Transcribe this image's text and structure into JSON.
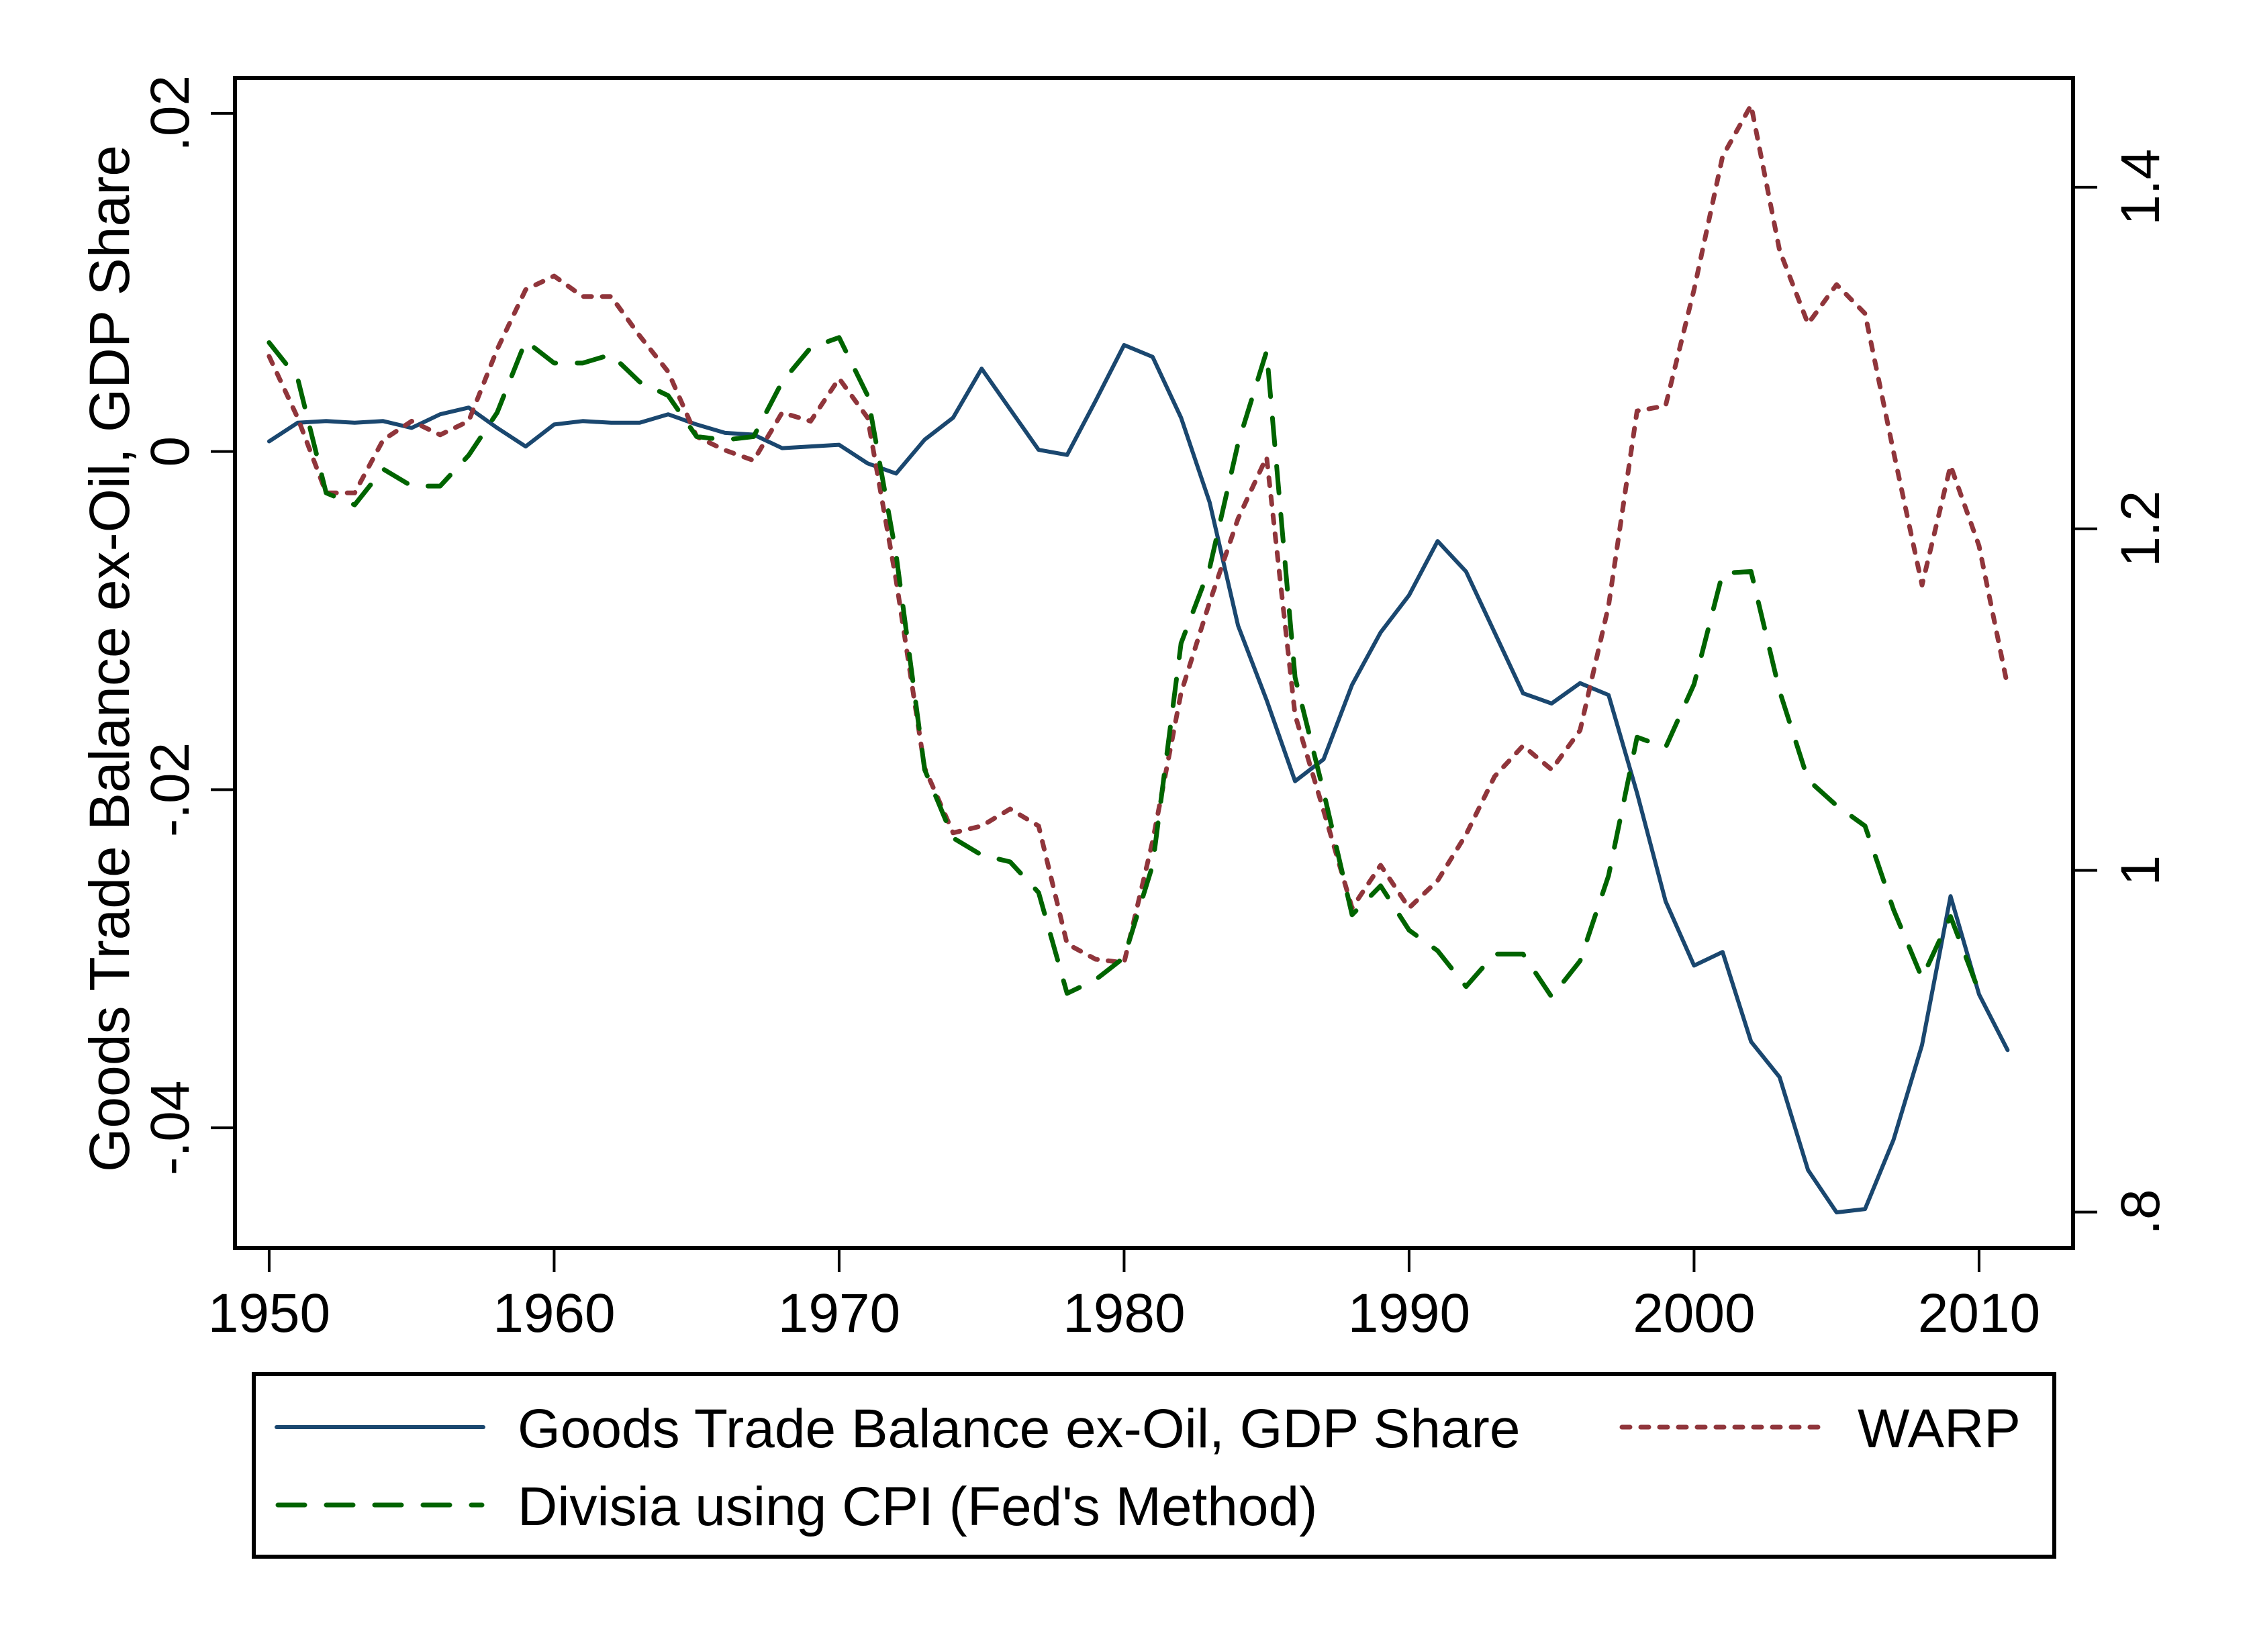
{
  "chart_data": {
    "type": "line",
    "title": "",
    "xlabel": "",
    "ylabel": "Goods Trade Balance ex-Oil, GDP Share",
    "ylabel_right": "",
    "xlim": [
      1948.8,
      2013.3
    ],
    "ylim": [
      -0.0471,
      0.0221
    ],
    "ylim_right": [
      0.779,
      1.464
    ],
    "grid": false,
    "legend_position": "bottom",
    "x_ticks": [
      1950,
      1960,
      1970,
      1980,
      1990,
      2000,
      2010
    ],
    "x_tick_labels": [
      "1950",
      "1960",
      "1970",
      "1980",
      "1990",
      "2000",
      "2010"
    ],
    "y_ticks": [
      -0.04,
      -0.02,
      0,
      0.02
    ],
    "y_tick_labels": [
      "-.04",
      "-.02",
      "0",
      ".02"
    ],
    "y_right_ticks": [
      0.8,
      1.0,
      1.2,
      1.4
    ],
    "y_right_tick_labels": [
      ".8",
      "1",
      "1.2",
      "1.4"
    ],
    "x": [
      1950,
      1951,
      1952,
      1953,
      1954,
      1955,
      1956,
      1957,
      1958,
      1959,
      1960,
      1961,
      1962,
      1963,
      1964,
      1965,
      1966,
      1967,
      1968,
      1969,
      1970,
      1971,
      1972,
      1973,
      1974,
      1975,
      1976,
      1977,
      1978,
      1979,
      1980,
      1981,
      1982,
      1983,
      1984,
      1985,
      1986,
      1987,
      1988,
      1989,
      1990,
      1991,
      1992,
      1993,
      1994,
      1995,
      1996,
      1997,
      1998,
      1999,
      2000,
      2001,
      2002,
      2003,
      2004,
      2005,
      2006,
      2007,
      2008,
      2009,
      2010,
      2011
    ],
    "series": [
      {
        "name": "Goods Trade Balance ex-Oil, GDP Share",
        "axis": "left",
        "style": "solid",
        "color": "#1a476f",
        "values": [
          0.0006,
          0.0017,
          0.0018,
          0.0017,
          0.0018,
          0.0014,
          0.0022,
          0.0026,
          0.0014,
          0.0003,
          0.0016,
          0.0018,
          0.0017,
          0.0017,
          0.0022,
          0.0016,
          0.0011,
          0.001,
          0.0002,
          0.0003,
          0.0004,
          -0.0007,
          -0.0013,
          0.0007,
          0.002,
          0.0049,
          0.0025,
          0.0001,
          -0.0002,
          0.003,
          0.0063,
          0.0056,
          0.002,
          -0.003,
          -0.0103,
          -0.0147,
          -0.0195,
          -0.0182,
          -0.0138,
          -0.0107,
          -0.0085,
          -0.0053,
          -0.0071,
          -0.0107,
          -0.0143,
          -0.0149,
          -0.0137,
          -0.0144,
          -0.0202,
          -0.0266,
          -0.0304,
          -0.0296,
          -0.0349,
          -0.037,
          -0.0425,
          -0.045,
          -0.0448,
          -0.0407,
          -0.0351,
          -0.0263,
          -0.0321,
          -0.0354
        ]
      },
      {
        "name": "WARP",
        "axis": "right",
        "style": "dotted",
        "color": "#90353b",
        "values": [
          1.301,
          1.265,
          1.221,
          1.221,
          1.252,
          1.263,
          1.255,
          1.263,
          1.305,
          1.34,
          1.348,
          1.336,
          1.336,
          1.313,
          1.292,
          1.254,
          1.246,
          1.24,
          1.268,
          1.263,
          1.288,
          1.265,
          1.17,
          1.06,
          1.022,
          1.026,
          1.036,
          1.026,
          0.957,
          0.948,
          0.946,
          1.017,
          1.104,
          1.157,
          1.206,
          1.242,
          1.091,
          1.035,
          0.978,
          1.003,
          0.978,
          0.994,
          1.021,
          1.055,
          1.073,
          1.059,
          1.082,
          1.155,
          1.269,
          1.272,
          1.34,
          1.418,
          1.448,
          1.363,
          1.32,
          1.343,
          1.326,
          1.245,
          1.167,
          1.237,
          1.19,
          1.108
        ]
      },
      {
        "name": "Divisia using CPI (Fed's Method)",
        "axis": "right",
        "style": "dashed",
        "color": "#006400",
        "values": [
          1.309,
          1.288,
          1.221,
          1.214,
          1.235,
          1.225,
          1.225,
          1.243,
          1.268,
          1.31,
          1.297,
          1.297,
          1.302,
          1.286,
          1.278,
          1.254,
          1.252,
          1.254,
          1.286,
          1.306,
          1.312,
          1.278,
          1.185,
          1.059,
          1.019,
          1.009,
          1.005,
          0.987,
          0.928,
          0.936,
          0.949,
          1.003,
          1.133,
          1.177,
          1.25,
          1.304,
          1.113,
          1.046,
          0.974,
          0.991,
          0.965,
          0.953,
          0.932,
          0.951,
          0.951,
          0.926,
          0.947,
          0.997,
          1.078,
          1.072,
          1.109,
          1.174,
          1.175,
          1.105,
          1.053,
          1.038,
          1.026,
          0.977,
          0.937,
          0.973,
          0.929,
          null
        ]
      }
    ],
    "legend": [
      {
        "label": "Goods Trade Balance ex-Oil, GDP Share",
        "series": 0
      },
      {
        "label": "WARP",
        "series": 1
      },
      {
        "label": "Divisia using CPI (Fed's Method)",
        "series": 2
      }
    ]
  }
}
